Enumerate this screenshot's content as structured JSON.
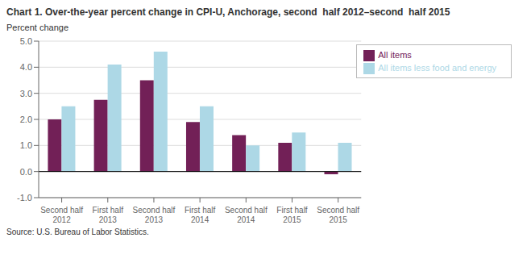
{
  "chart_data": {
    "type": "bar",
    "title": "Chart 1. Over-the-year percent change in CPI-U, Anchorage, second  half 2012–second  half 2015",
    "y_label": "Percent change",
    "annotations": [
      "Source: U.S. Bureau of Labor Statistics."
    ],
    "categories": [
      "Second half 2012",
      "First half 2013",
      "Second half 2013",
      "First half 2014",
      "Second half 2014",
      "First half 2015",
      "Second half 2015"
    ],
    "series": [
      {
        "name": "All items",
        "color": "#722057",
        "values": [
          2.0,
          2.75,
          3.5,
          1.9,
          1.4,
          1.1,
          -0.1
        ]
      },
      {
        "name": "All items less food and energy",
        "color": "#add8e6",
        "values": [
          2.5,
          4.1,
          4.6,
          2.5,
          1.0,
          1.5,
          1.1
        ]
      }
    ],
    "ylim": [
      -1.0,
      5.0
    ],
    "yticks": [
      {
        "value": -1.0,
        "label": "-1.0"
      },
      {
        "value": 0.0,
        "label": "0.0"
      },
      {
        "value": 1.0,
        "label": "1.0"
      },
      {
        "value": 2.0,
        "label": "2.0"
      },
      {
        "value": 3.0,
        "label": "3.0"
      },
      {
        "value": 4.0,
        "label": "4.0"
      },
      {
        "value": 5.0,
        "label": "5.0"
      }
    ],
    "grid": true,
    "legend": "upper right"
  }
}
